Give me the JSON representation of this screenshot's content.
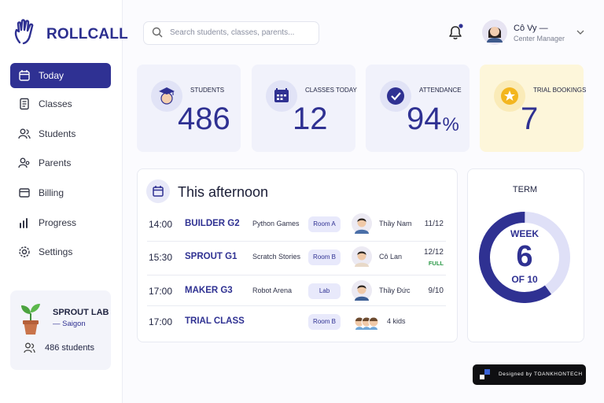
{
  "brand": "ROLLCALL",
  "search_placeholder": "Search students, classes, parents...",
  "user": {
    "name": "Cô Vy —",
    "role": "Center Manager"
  },
  "nav": [
    "Today",
    "Classes",
    "Students",
    "Parents",
    "Billing",
    "Progress",
    "Settings"
  ],
  "center": {
    "name": "SPROUT LAB",
    "location": "— Saigon",
    "students": "486 students"
  },
  "stats": [
    {
      "label": "STUDENTS",
      "value": "486"
    },
    {
      "label": "CLASSES TODAY",
      "value": "12"
    },
    {
      "label": "ATTENDANCE",
      "value": "94",
      "unit": "%"
    },
    {
      "label": "TRIAL BOOKINGS",
      "value": "7"
    }
  ],
  "schedule": {
    "title": "This afternoon",
    "rows": [
      {
        "time": "14:00",
        "class": "BUILDER G2",
        "topic": "Python Games",
        "room": "Room A",
        "teacher": "Thầy Nam",
        "count": "11/12"
      },
      {
        "time": "15:30",
        "class": "SPROUT G1",
        "topic": "Scratch Stories",
        "room": "Room B",
        "teacher": "Cô Lan",
        "count": "12/12",
        "status": "FULL"
      },
      {
        "time": "17:00",
        "class": "MAKER G3",
        "topic": "Robot Arena",
        "room": "Lab",
        "teacher": "Thầy Đức",
        "count": "9/10"
      },
      {
        "time": "17:00",
        "class": "TRIAL CLASS",
        "room": "Room B",
        "attendees": "4 kids"
      }
    ]
  },
  "term": {
    "label": "TERM",
    "week_label": "WEEK",
    "week": 6,
    "of_label": "OF",
    "total": 10
  },
  "footer": "Designed by TOANKHONTECH"
}
